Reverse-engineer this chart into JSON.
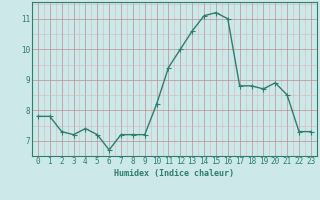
{
  "x": [
    0,
    1,
    2,
    3,
    4,
    5,
    6,
    7,
    8,
    9,
    10,
    11,
    12,
    13,
    14,
    15,
    16,
    17,
    18,
    19,
    20,
    21,
    22,
    23
  ],
  "y": [
    7.8,
    7.8,
    7.3,
    7.2,
    7.4,
    7.2,
    6.7,
    7.2,
    7.2,
    7.2,
    8.2,
    9.4,
    10.0,
    10.6,
    11.1,
    11.2,
    11.0,
    8.8,
    8.8,
    8.7,
    8.9,
    8.5,
    7.3,
    7.3
  ],
  "line_color": "#2e7d6e",
  "marker": "D",
  "marker_size": 1.8,
  "bg_color": "#cde8e8",
  "grid_color_major": "#b89090",
  "grid_color_minor": "#d4b8b8",
  "xlabel": "Humidex (Indice chaleur)",
  "xlabel_fontsize": 6.0,
  "ylabel_ticks": [
    7,
    8,
    9,
    10,
    11
  ],
  "xlim": [
    -0.5,
    23.5
  ],
  "ylim": [
    6.5,
    11.55
  ],
  "tick_fontsize": 5.5,
  "line_width": 1.0
}
